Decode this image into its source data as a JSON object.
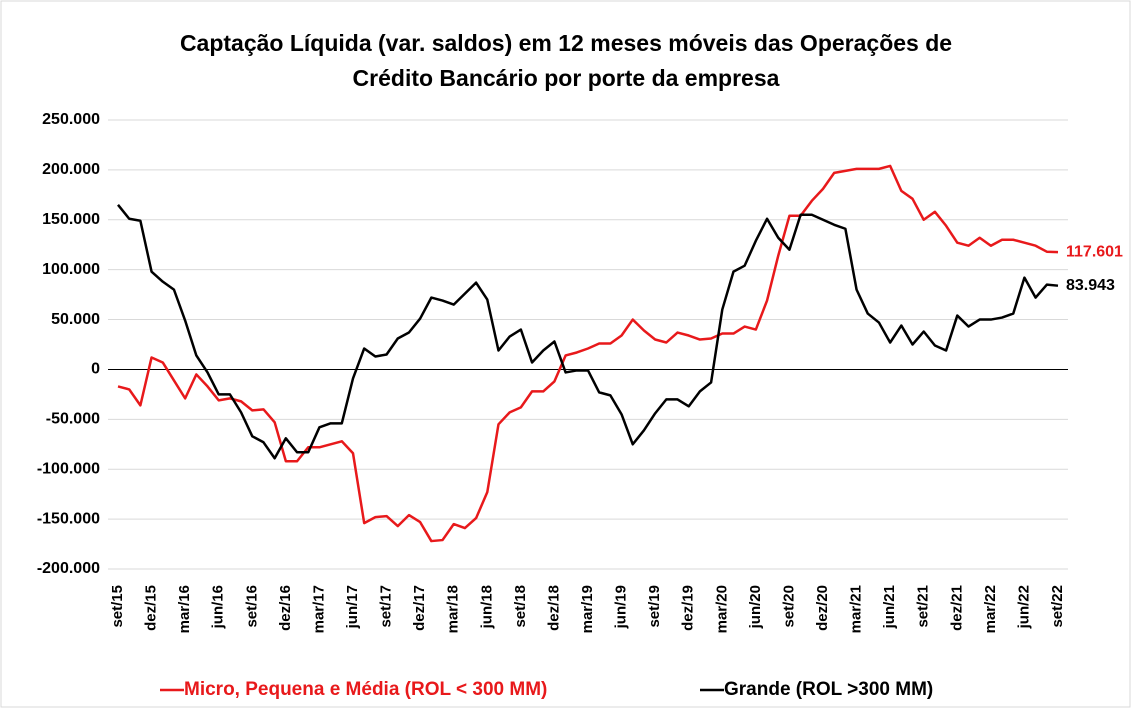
{
  "chart_data": {
    "type": "line",
    "title": [
      "Captação Líquida (var. saldos) em 12 meses móveis das Operações de",
      "Crédito Bancário por porte da empresa"
    ],
    "categories": [
      "set/15",
      null,
      null,
      "dez/15",
      null,
      null,
      "mar/16",
      null,
      null,
      "jun/16",
      null,
      null,
      "set/16",
      null,
      null,
      "dez/16",
      null,
      null,
      "mar/17",
      null,
      null,
      "jun/17",
      null,
      null,
      "set/17",
      null,
      null,
      "dez/17",
      null,
      null,
      "mar/18",
      null,
      null,
      "jun/18",
      null,
      null,
      "set/18",
      null,
      null,
      "dez/18",
      null,
      null,
      "mar/19",
      null,
      null,
      "jun/19",
      null,
      null,
      "set/19",
      null,
      null,
      "dez/19",
      null,
      null,
      "mar/20",
      null,
      null,
      "jun/20",
      null,
      null,
      "set/20",
      null,
      null,
      "dez/20",
      null,
      null,
      "mar/21",
      null,
      null,
      "jun/21",
      null,
      null,
      "set/21",
      null,
      null,
      "dez/21",
      null,
      null,
      "mar/22",
      null,
      null,
      "jun/22",
      null,
      null,
      "set/22"
    ],
    "series": [
      {
        "name": "Micro, Pequena e Média (ROL < 300 MM)",
        "color": "#e8191b",
        "end_label": "117.601",
        "values": [
          -17000,
          -20000,
          -36000,
          12000,
          7000,
          -11000,
          -29000,
          -5000,
          -17000,
          -31000,
          -29000,
          -32000,
          -41000,
          -40000,
          -53000,
          -92000,
          -92000,
          -78000,
          -78000,
          -75000,
          -72000,
          -84000,
          -154000,
          -148000,
          -147000,
          -157000,
          -146000,
          -153000,
          -172000,
          -171000,
          -155000,
          -159000,
          -149000,
          -123000,
          -55000,
          -43000,
          -38000,
          -22000,
          -22000,
          -12000,
          14000,
          17000,
          21000,
          26000,
          26000,
          34000,
          50000,
          39000,
          30000,
          27000,
          37000,
          34000,
          30000,
          31000,
          36000,
          36000,
          43000,
          40000,
          69000,
          114000,
          154000,
          154000,
          169000,
          181000,
          197000,
          199000,
          201000,
          201000,
          201000,
          204000,
          179000,
          171000,
          150000,
          158000,
          144000,
          127000,
          124000,
          132000,
          124000,
          130000,
          130000,
          127000,
          124000,
          118000,
          117601
        ]
      },
      {
        "name": "Grande (ROL >300 MM)",
        "color": "#000000",
        "end_label": "83.943",
        "values": [
          165000,
          151000,
          149000,
          98000,
          88000,
          80000,
          49000,
          14000,
          -3000,
          -25000,
          -25000,
          -43000,
          -67000,
          -73000,
          -89000,
          -69000,
          -83000,
          -83000,
          -58000,
          -54000,
          -54000,
          -9000,
          21000,
          13000,
          15000,
          31000,
          37000,
          51000,
          72000,
          69000,
          65000,
          76000,
          87000,
          70000,
          19000,
          33000,
          40000,
          7000,
          19000,
          28000,
          -3000,
          -1000,
          -1000,
          -23000,
          -26000,
          -45000,
          -75000,
          -61000,
          -44000,
          -30000,
          -30000,
          -37000,
          -22000,
          -13000,
          60000,
          98000,
          104000,
          129000,
          151000,
          132000,
          120000,
          155000,
          155000,
          150000,
          145000,
          141000,
          80000,
          56000,
          47000,
          27000,
          44000,
          25000,
          38000,
          24000,
          19000,
          54000,
          43000,
          50000,
          50000,
          52000,
          56000,
          92000,
          72000,
          85000,
          83943
        ]
      }
    ],
    "ylim": [
      -200000,
      250000
    ],
    "yticks": [
      {
        "value": 250000,
        "label": "250.000"
      },
      {
        "value": 200000,
        "label": "200.000"
      },
      {
        "value": 150000,
        "label": "150.000"
      },
      {
        "value": 100000,
        "label": "100.000"
      },
      {
        "value": 50000,
        "label": "50.000"
      },
      0,
      {
        "value": -50000,
        "label": "-50.000"
      },
      {
        "value": -100000,
        "label": "-100.000"
      },
      {
        "value": -150000,
        "label": "-150.000"
      },
      {
        "value": -200000,
        "label": "-200.000"
      }
    ],
    "grid": true,
    "legend": "bottom"
  }
}
